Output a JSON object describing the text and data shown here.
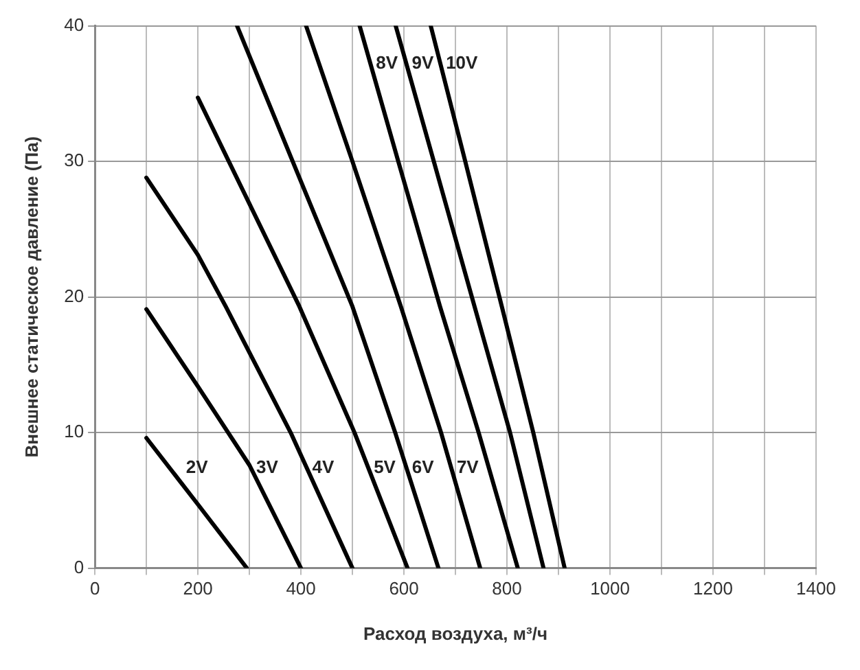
{
  "chart_data": {
    "type": "line",
    "xlabel": "Расход воздуха, м³/ч",
    "ylabel": "Внешнее статическое давление (Па)",
    "xlim": [
      0,
      1400
    ],
    "ylim": [
      0,
      40
    ],
    "xticks": [
      0,
      {
        "value": 100,
        "label": null
      },
      200,
      {
        "value": 300,
        "label": null
      },
      400,
      {
        "value": 500,
        "label": null
      },
      600,
      {
        "value": 700,
        "label": null
      },
      800,
      {
        "value": 900,
        "label": null
      },
      1000,
      {
        "value": 1100,
        "label": null
      },
      1200,
      {
        "value": 1300,
        "label": null
      },
      1400
    ],
    "yticks": [
      0,
      10,
      20,
      30,
      40
    ],
    "grid": true,
    "legend": false,
    "marker": "none",
    "line_style": "solid",
    "series": [
      {
        "name": "2V",
        "color": "#000000",
        "x": [
          100,
          200,
          295
        ],
        "values": [
          9.6,
          4.7,
          0
        ]
      },
      {
        "name": "3V",
        "color": "#000000",
        "x": [
          100,
          200,
          300,
          400
        ],
        "values": [
          19.1,
          13.4,
          7.6,
          0
        ]
      },
      {
        "name": "4V",
        "color": "#000000",
        "x": [
          100,
          200,
          254,
          380,
          500
        ],
        "values": [
          28.8,
          23.1,
          19.3,
          10,
          0
        ]
      },
      {
        "name": "5V",
        "color": "#000000",
        "x": [
          200,
          260,
          397,
          504,
          607
        ],
        "values": [
          34.7,
          30,
          19.3,
          10,
          0
        ]
      },
      {
        "name": "6V",
        "color": "#000000",
        "x": [
          276,
          384,
          500,
          583,
          667
        ],
        "values": [
          40,
          30,
          19.3,
          10,
          0
        ]
      },
      {
        "name": "7V",
        "color": "#000000",
        "x": [
          410,
          500,
          594,
          672,
          748
        ],
        "values": [
          40,
          30,
          19.3,
          10,
          0
        ]
      },
      {
        "name": "8V",
        "color": "#000000",
        "x": [
          514,
          589,
          670,
          745,
          821
        ],
        "values": [
          40,
          30,
          19.3,
          10,
          0
        ]
      },
      {
        "name": "9V",
        "color": "#000000",
        "x": [
          584,
          658,
          737,
          806,
          871
        ],
        "values": [
          40,
          30,
          19.3,
          10,
          0
        ]
      },
      {
        "name": "10V",
        "color": "#000000",
        "x": [
          652,
          719,
          790,
          851,
          912
        ],
        "values": [
          40,
          30,
          19.3,
          10,
          0
        ]
      }
    ]
  }
}
